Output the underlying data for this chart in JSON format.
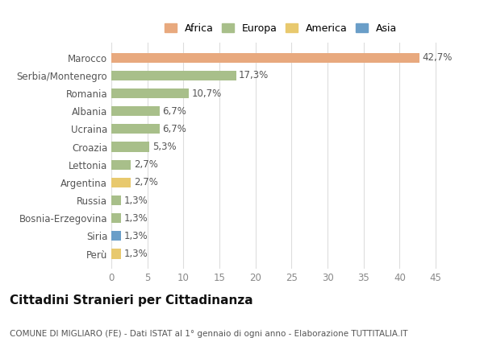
{
  "categories": [
    "Marocco",
    "Serbia/Montenegro",
    "Romania",
    "Albania",
    "Ucraina",
    "Croazia",
    "Lettonia",
    "Argentina",
    "Russia",
    "Bosnia-Erzegovina",
    "Siria",
    "Perù"
  ],
  "values": [
    42.7,
    17.3,
    10.7,
    6.7,
    6.7,
    5.3,
    2.7,
    2.7,
    1.3,
    1.3,
    1.3,
    1.3
  ],
  "labels": [
    "42,7%",
    "17,3%",
    "10,7%",
    "6,7%",
    "6,7%",
    "5,3%",
    "2,7%",
    "2,7%",
    "1,3%",
    "1,3%",
    "1,3%",
    "1,3%"
  ],
  "colors": [
    "#e8a97e",
    "#a8bf8a",
    "#a8bf8a",
    "#a8bf8a",
    "#a8bf8a",
    "#a8bf8a",
    "#a8bf8a",
    "#e8c96e",
    "#a8bf8a",
    "#a8bf8a",
    "#6a9ec8",
    "#e8c96e"
  ],
  "legend_labels": [
    "Africa",
    "Europa",
    "America",
    "Asia"
  ],
  "legend_colors": [
    "#e8a97e",
    "#a8bf8a",
    "#e8c96e",
    "#6a9ec8"
  ],
  "title": "Cittadini Stranieri per Cittadinanza",
  "subtitle": "COMUNE DI MIGLIARO (FE) - Dati ISTAT al 1° gennaio di ogni anno - Elaborazione TUTTITALIA.IT",
  "xlim": [
    0,
    47
  ],
  "xticks": [
    0,
    5,
    10,
    15,
    20,
    25,
    30,
    35,
    40,
    45
  ],
  "background_color": "#ffffff",
  "grid_color": "#dddddd",
  "bar_height": 0.55,
  "label_fontsize": 8.5,
  "tick_fontsize": 8.5,
  "title_fontsize": 11,
  "subtitle_fontsize": 7.5
}
